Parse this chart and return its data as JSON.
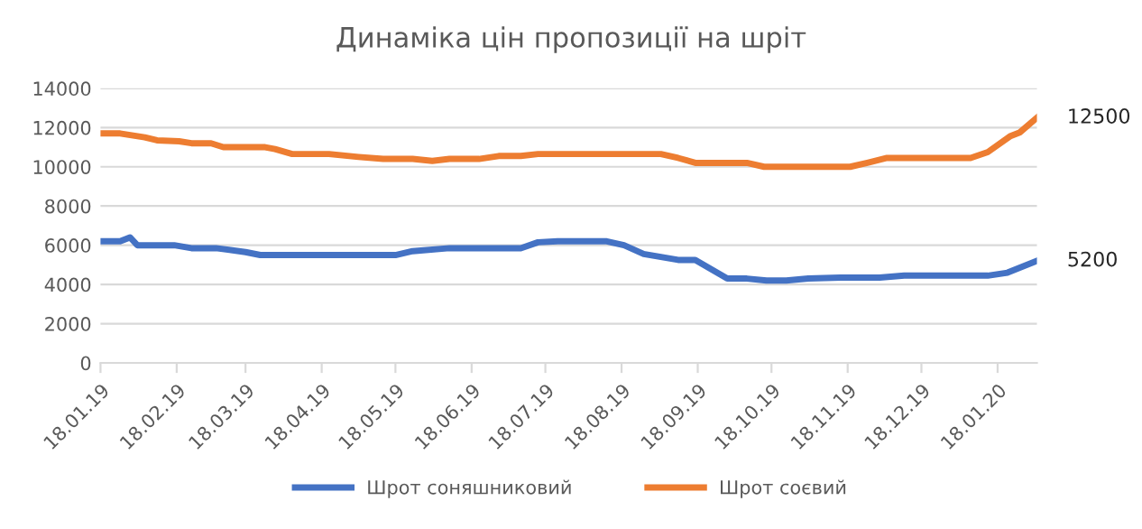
{
  "chart_data": {
    "type": "line",
    "title": "Динаміка цін пропозиції на шріт",
    "xlim": [
      "2019-01-18",
      "2020-02-03"
    ],
    "xticks": [
      {
        "value": "2019-01-18",
        "label": "18.01.19"
      },
      {
        "value": "2019-02-18",
        "label": "18.02.19"
      },
      {
        "value": "2019-03-18",
        "label": "18.03.19"
      },
      {
        "value": "2019-04-18",
        "label": "18.04.19"
      },
      {
        "value": "2019-05-18",
        "label": "18.05.19"
      },
      {
        "value": "2019-06-18",
        "label": "18.06.19"
      },
      {
        "value": "2019-07-18",
        "label": "18.07.19"
      },
      {
        "value": "2019-08-18",
        "label": "18.08.19"
      },
      {
        "value": "2019-09-18",
        "label": "18.09.19"
      },
      {
        "value": "2019-10-18",
        "label": "18.10.19"
      },
      {
        "value": "2019-11-18",
        "label": "18.11.19"
      },
      {
        "value": "2019-12-18",
        "label": "18.12.19"
      },
      {
        "value": "2020-01-18",
        "label": "18.01.20"
      }
    ],
    "ylim": [
      0,
      14000
    ],
    "yticks": [
      0,
      2000,
      4000,
      6000,
      8000,
      10000,
      12000,
      14000
    ],
    "grid": "y",
    "legend": "bottom",
    "marker": "none",
    "line_style": "solid",
    "series": [
      {
        "name": "Шрот соняшниковий",
        "color": "#4472c4",
        "x": [
          "2019-01-18",
          "2019-01-26",
          "2019-01-30",
          "2019-02-02",
          "2019-02-17",
          "2019-02-24",
          "2019-03-06",
          "2019-03-18",
          "2019-03-24",
          "2019-05-18",
          "2019-05-25",
          "2019-06-09",
          "2019-07-08",
          "2019-07-15",
          "2019-07-23",
          "2019-08-12",
          "2019-08-19",
          "2019-08-27",
          "2019-09-10",
          "2019-09-17",
          "2019-09-30",
          "2019-10-08",
          "2019-10-16",
          "2019-10-24",
          "2019-11-02",
          "2019-11-15",
          "2019-12-01",
          "2019-12-11",
          "2020-01-14",
          "2020-01-22",
          "2020-02-03"
        ],
        "values": [
          6200,
          6200,
          6400,
          6000,
          6000,
          5850,
          5850,
          5650,
          5500,
          5500,
          5700,
          5850,
          5850,
          6150,
          6200,
          6200,
          6000,
          5550,
          5250,
          5250,
          4300,
          4300,
          4200,
          4200,
          4300,
          4350,
          4350,
          4450,
          4450,
          4600,
          5200
        ]
      },
      {
        "name": "Шрот соєвий",
        "color": "#ed7d31",
        "x": [
          "2019-01-18",
          "2019-01-26",
          "2019-02-05",
          "2019-02-10",
          "2019-02-19",
          "2019-02-24",
          "2019-03-04",
          "2019-03-09",
          "2019-03-26",
          "2019-03-30",
          "2019-04-06",
          "2019-04-21",
          "2019-05-03",
          "2019-05-13",
          "2019-05-25",
          "2019-06-02",
          "2019-06-09",
          "2019-06-21",
          "2019-06-29",
          "2019-07-08",
          "2019-07-15",
          "2019-09-03",
          "2019-09-10",
          "2019-09-17",
          "2019-10-08",
          "2019-10-15",
          "2019-11-19",
          "2019-11-26",
          "2019-12-04",
          "2020-01-07",
          "2020-01-14",
          "2020-01-23",
          "2020-01-27",
          "2020-02-03"
        ],
        "values": [
          11700,
          11700,
          11500,
          11350,
          11300,
          11200,
          11200,
          11000,
          11000,
          10900,
          10650,
          10650,
          10500,
          10400,
          10400,
          10300,
          10400,
          10400,
          10550,
          10550,
          10650,
          10650,
          10450,
          10200,
          10200,
          10000,
          10000,
          10200,
          10450,
          10450,
          10750,
          11550,
          11750,
          12500
        ]
      }
    ],
    "annotations": [
      {
        "text": "12500",
        "x": "2020-02-03",
        "y": 12500
      },
      {
        "text": "5200",
        "x": "2020-02-03",
        "y": 5200
      }
    ]
  }
}
